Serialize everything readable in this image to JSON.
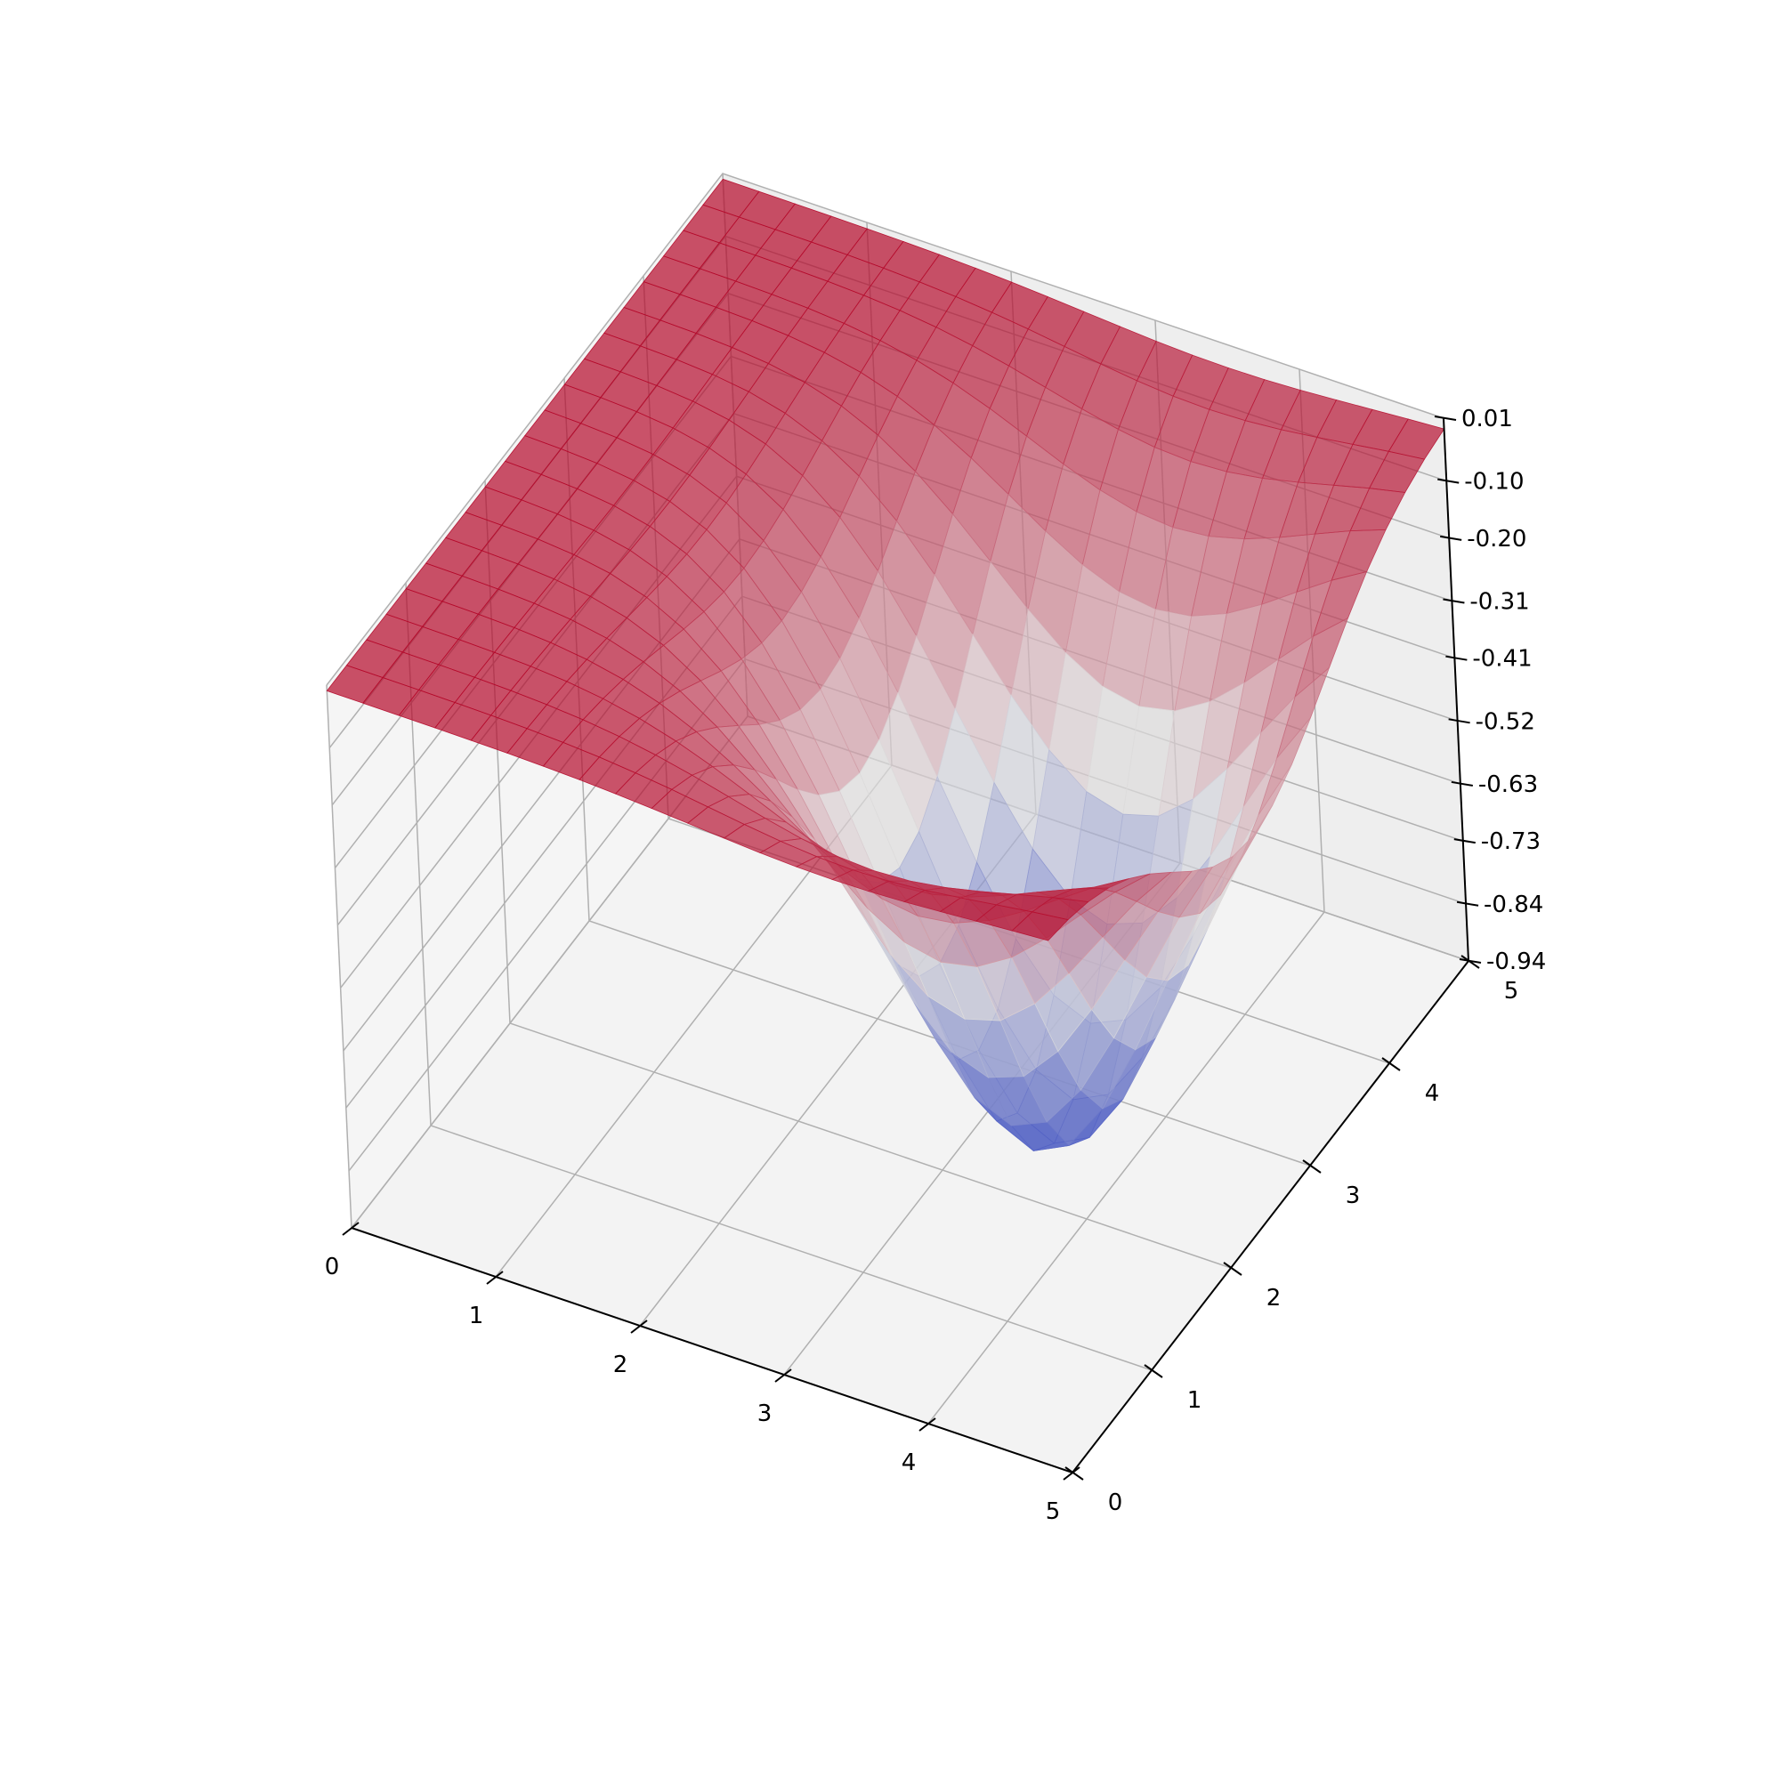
{
  "chart_data": {
    "type": "surface3d",
    "title": "",
    "xlabel": "",
    "ylabel": "",
    "zlabel": "",
    "colormap": "coolwarm",
    "surface_alpha": 0.7,
    "grid": true,
    "xlim": [
      0,
      5
    ],
    "ylim": [
      0,
      5
    ],
    "zlim": [
      -0.94,
      0.01
    ],
    "x_ticks": [
      "0",
      "1",
      "2",
      "3",
      "4",
      "5"
    ],
    "y_ticks": [
      "0",
      "1",
      "2",
      "3",
      "4",
      "5"
    ],
    "z_ticks": [
      "0.01",
      "-0.10",
      "-0.20",
      "-0.31",
      "-0.41",
      "-0.52",
      "-0.63",
      "-0.73",
      "-0.84",
      "-0.94"
    ],
    "surface": {
      "function": "well",
      "center_x": 3.5,
      "center_y": 2.5,
      "depth": -0.94,
      "radius": 1.35,
      "grid_steps": 20
    },
    "colors": {
      "low": "#3b4cc0",
      "mid": "#dddddd",
      "high": "#b40426",
      "pane": "#f2f2f2",
      "gridline": "#b0b0b0"
    }
  }
}
